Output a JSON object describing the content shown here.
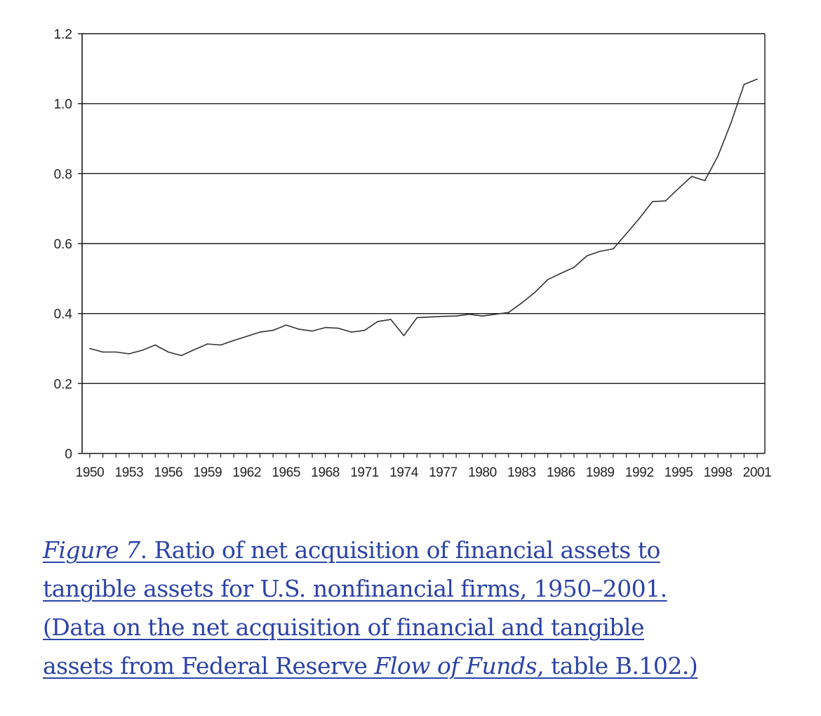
{
  "chart_data": {
    "type": "line",
    "x_tick_labels": [
      "1950",
      "1953",
      "1956",
      "1959",
      "1962",
      "1965",
      "1968",
      "1971",
      "1974",
      "1977",
      "1980",
      "1983",
      "1986",
      "1989",
      "1992",
      "1995",
      "1998",
      "2001"
    ],
    "y_tick_labels": [
      "0",
      "0.2",
      "0.4",
      "0.6",
      "0.8",
      "1.0",
      "1.2"
    ],
    "ylim": [
      0,
      1.2
    ],
    "xlim": [
      1950,
      2001
    ],
    "grid": "horizontal",
    "series": [
      {
        "x": [
          1950,
          1951,
          1952,
          1953,
          1954,
          1955,
          1956,
          1957,
          1958,
          1959,
          1960,
          1961,
          1962,
          1963,
          1964,
          1965,
          1966,
          1967,
          1968,
          1969,
          1970,
          1971,
          1972,
          1973,
          1974,
          1975,
          1976,
          1977,
          1978,
          1979,
          1980,
          1981,
          1982,
          1983,
          1984,
          1985,
          1986,
          1987,
          1988,
          1989,
          1990,
          1991,
          1992,
          1993,
          1994,
          1995,
          1996,
          1997,
          1998,
          1999,
          2000,
          2001
        ],
        "values": [
          0.3,
          0.29,
          0.29,
          0.285,
          0.295,
          0.31,
          0.29,
          0.28,
          0.297,
          0.313,
          0.31,
          0.323,
          0.335,
          0.347,
          0.352,
          0.367,
          0.355,
          0.35,
          0.36,
          0.358,
          0.347,
          0.352,
          0.377,
          0.383,
          0.337,
          0.388,
          0.39,
          0.392,
          0.393,
          0.398,
          0.393,
          0.398,
          0.403,
          0.43,
          0.46,
          0.497,
          0.515,
          0.532,
          0.565,
          0.578,
          0.585,
          0.628,
          0.672,
          0.72,
          0.722,
          0.758,
          0.792,
          0.78,
          0.85,
          0.945,
          1.055,
          1.07
        ]
      }
    ]
  },
  "caption": {
    "figure_label": "Figure 7",
    "line1_rest": ". Ratio of net acquisition of financial assets to",
    "line2": "tangible assets for U.S. nonfinancial firms, 1950–2001.",
    "line3": "(Data on the net acquisition of financial and tangible",
    "line4_start": "assets from Federal Reserve ",
    "source_title": "Flow of Funds",
    "line4_end": ", table B.102.)"
  }
}
